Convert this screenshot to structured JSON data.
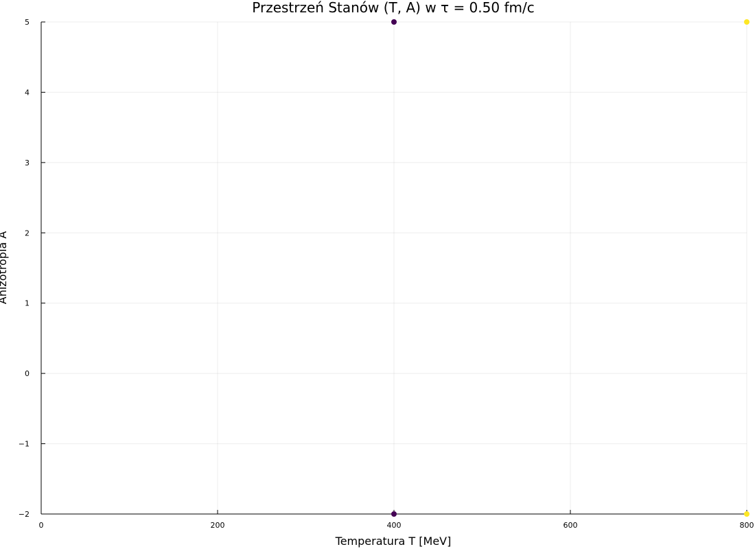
{
  "chart_data": {
    "type": "scatter",
    "title": "Przestrzeń Stanów (T, A) w τ = 0.50 fm/c",
    "xlabel": "Temperatura T [MeV]",
    "ylabel": "Anizotropia A",
    "xlim": [
      0,
      800
    ],
    "ylim": [
      -2,
      5
    ],
    "x_ticks": [
      0,
      200,
      400,
      600,
      800
    ],
    "x_tick_labels": [
      "0",
      "200",
      "400",
      "600",
      "800"
    ],
    "y_ticks": [
      -2,
      -1,
      0,
      1,
      2,
      3,
      4,
      5
    ],
    "y_tick_labels": [
      "−2",
      "−1",
      "0",
      "1",
      "2",
      "3",
      "4",
      "5"
    ],
    "grid": true,
    "legend": false,
    "points": [
      {
        "x": 400,
        "y": 5,
        "color": "#440154"
      },
      {
        "x": 400,
        "y": -2,
        "color": "#440154"
      },
      {
        "x": 800,
        "y": 5,
        "color": "#fde725"
      },
      {
        "x": 800,
        "y": -2,
        "color": "#fde725"
      }
    ]
  }
}
